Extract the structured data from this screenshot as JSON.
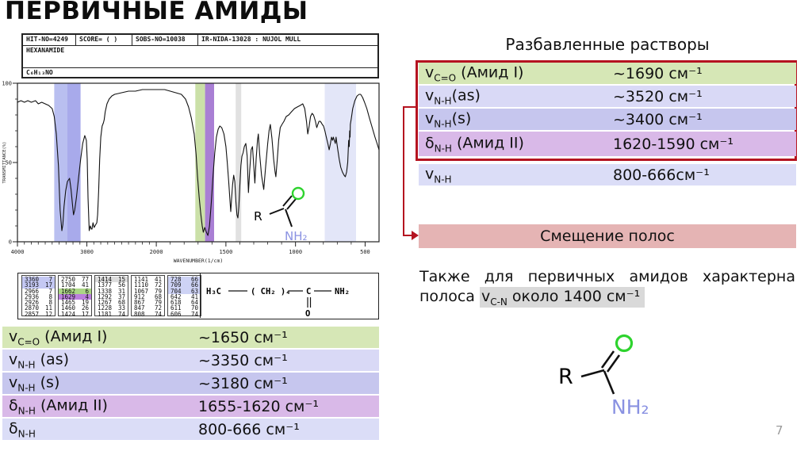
{
  "slide": {
    "title": "ПЕРВИЧНЫЕ АМИДЫ",
    "page_number": "7"
  },
  "colors": {
    "accent_red": "#b51320",
    "row_green": "#d6e7b6",
    "row_lavender_1": "#d9d9f6",
    "row_lavender_2": "#c6c6ee",
    "row_purple": "#d9b9e8",
    "row_lavender_3": "#dbddf7",
    "shift_box_bg": "#e5b4b4",
    "note_highlight_bg": "#d9d9d9",
    "structure_o_green": "#2ed32e",
    "structure_nh2_blue": "#8a92e2",
    "peak_hl": {
      "blue": "#c4c8f3",
      "green": "#abd685",
      "purple": "#bb7fdd",
      "gray": "#dcdcdc",
      "lav": "#ced3f5"
    }
  },
  "sdbs_card": {
    "header": {
      "hit_no": "HIT-NO=4249",
      "score": "SCORE=  (  )",
      "sobs_no": "SOBS-NO=10038",
      "source": "IR-NIDA-13028 : NUJOL MULL",
      "compound": "HEXANAMIDE",
      "formula": "C₆H₁₃NO"
    },
    "formula_line": {
      "h3c": "H₃C",
      "ch2": "( CH₂ )₄",
      "c": "C",
      "o": "O",
      "nh2": "NH₂"
    },
    "peak_columns": [
      [
        {
          "w": "3360",
          "i": "7",
          "hl": "blue"
        },
        {
          "w": "3193",
          "i": "17",
          "hl": "blue"
        },
        {
          "w": "2966",
          "i": "7"
        },
        {
          "w": "2936",
          "i": "8"
        },
        {
          "w": "2926",
          "i": "8"
        },
        {
          "w": "2870",
          "i": "11"
        },
        {
          "w": "2857",
          "i": "12"
        }
      ],
      [
        {
          "w": "2750",
          "i": "77"
        },
        {
          "w": "1704",
          "i": "41"
        },
        {
          "w": "1662",
          "i": "6",
          "hl": "green"
        },
        {
          "w": "1629",
          "i": "4",
          "hl": "purple"
        },
        {
          "w": "1465",
          "i": "19"
        },
        {
          "w": "1460",
          "i": "26"
        },
        {
          "w": "1424",
          "i": "17"
        }
      ],
      [
        {
          "w": "1414",
          "i": "15",
          "hl": "gray"
        },
        {
          "w": "1377",
          "i": "56"
        },
        {
          "w": "1338",
          "i": "31"
        },
        {
          "w": "1292",
          "i": "37"
        },
        {
          "w": "1267",
          "i": "68"
        },
        {
          "w": "1228",
          "i": "33"
        },
        {
          "w": "1181",
          "i": "74"
        }
      ],
      [
        {
          "w": "1141",
          "i": "41"
        },
        {
          "w": "1110",
          "i": "72"
        },
        {
          "w": "1067",
          "i": "79"
        },
        {
          "w": "912",
          "i": "68"
        },
        {
          "w": "867",
          "i": "79"
        },
        {
          "w": "847",
          "i": "72"
        },
        {
          "w": "808",
          "i": "74"
        }
      ],
      [
        {
          "w": "728",
          "i": "66",
          "hl": "lav"
        },
        {
          "w": "709",
          "i": "66",
          "hl": "lav"
        },
        {
          "w": "704",
          "i": "63",
          "hl": "lav"
        },
        {
          "w": "642",
          "i": "41"
        },
        {
          "w": "618",
          "i": "64"
        },
        {
          "w": "611",
          "i": "70"
        },
        {
          "w": "606",
          "i": "74"
        }
      ]
    ]
  },
  "chart_data": {
    "type": "line",
    "xlabel": "WAVENUMBER(1/cm)",
    "ylabel": "TRANSMITTANCE(%)",
    "x_ticks": [
      4000,
      3000,
      2000,
      1500,
      1000,
      500
    ],
    "y_ticks": [
      100,
      50,
      0
    ],
    "ylim": [
      0,
      100
    ],
    "x_axis_note": "split scale: 4000-2000 compressed, 2000-400 expanded",
    "bands": [
      {
        "from": 3470,
        "to": 3280,
        "color": "#b9bff0"
      },
      {
        "from": 3280,
        "to": 3090,
        "color": "#a8aaeb"
      },
      {
        "from": 1720,
        "to": 1650,
        "color": "#cbe0a8"
      },
      {
        "from": 1650,
        "to": 1585,
        "color": "#a97fd4"
      },
      {
        "from": 1430,
        "to": 1390,
        "color": "#e1e1e1"
      },
      {
        "from": 790,
        "to": 565,
        "color": "#e3e6f8"
      }
    ],
    "curve": [
      [
        4000,
        88
      ],
      [
        3950,
        89
      ],
      [
        3900,
        88
      ],
      [
        3850,
        89
      ],
      [
        3800,
        88
      ],
      [
        3740,
        89
      ],
      [
        3700,
        87
      ],
      [
        3650,
        88
      ],
      [
        3600,
        87
      ],
      [
        3550,
        86
      ],
      [
        3500,
        84
      ],
      [
        3470,
        79
      ],
      [
        3440,
        68
      ],
      [
        3410,
        48
      ],
      [
        3385,
        20
      ],
      [
        3360,
        7
      ],
      [
        3345,
        11
      ],
      [
        3330,
        22
      ],
      [
        3305,
        32
      ],
      [
        3280,
        38
      ],
      [
        3250,
        40
      ],
      [
        3228,
        33
      ],
      [
        3208,
        24
      ],
      [
        3193,
        17
      ],
      [
        3175,
        20
      ],
      [
        3150,
        28
      ],
      [
        3120,
        40
      ],
      [
        3090,
        52
      ],
      [
        3060,
        62
      ],
      [
        3030,
        67
      ],
      [
        3008,
        64
      ],
      [
        2995,
        52
      ],
      [
        2984,
        28
      ],
      [
        2966,
        7
      ],
      [
        2950,
        10
      ],
      [
        2936,
        8
      ],
      [
        2926,
        8
      ],
      [
        2912,
        12
      ],
      [
        2895,
        9
      ],
      [
        2870,
        11
      ],
      [
        2857,
        12
      ],
      [
        2845,
        17
      ],
      [
        2830,
        32
      ],
      [
        2815,
        52
      ],
      [
        2800,
        66
      ],
      [
        2780,
        73
      ],
      [
        2762,
        75
      ],
      [
        2750,
        77
      ],
      [
        2736,
        82
      ],
      [
        2710,
        87
      ],
      [
        2680,
        90
      ],
      [
        2640,
        92
      ],
      [
        2600,
        93
      ],
      [
        2500,
        94
      ],
      [
        2400,
        95
      ],
      [
        2300,
        95
      ],
      [
        2200,
        96
      ],
      [
        2100,
        96
      ],
      [
        2000,
        96
      ],
      [
        1940,
        96
      ],
      [
        1900,
        95
      ],
      [
        1860,
        94
      ],
      [
        1820,
        93
      ],
      [
        1790,
        90
      ],
      [
        1768,
        85
      ],
      [
        1748,
        78
      ],
      [
        1728,
        68
      ],
      [
        1714,
        55
      ],
      [
        1704,
        41
      ],
      [
        1692,
        28
      ],
      [
        1681,
        18
      ],
      [
        1670,
        10
      ],
      [
        1662,
        6
      ],
      [
        1652,
        9
      ],
      [
        1640,
        6
      ],
      [
        1629,
        4
      ],
      [
        1618,
        10
      ],
      [
        1605,
        25
      ],
      [
        1592,
        42
      ],
      [
        1580,
        56
      ],
      [
        1568,
        66
      ],
      [
        1556,
        71
      ],
      [
        1544,
        73
      ],
      [
        1530,
        72
      ],
      [
        1514,
        68
      ],
      [
        1500,
        60
      ],
      [
        1490,
        50
      ],
      [
        1480,
        38
      ],
      [
        1471,
        26
      ],
      [
        1465,
        19
      ],
      [
        1460,
        26
      ],
      [
        1452,
        36
      ],
      [
        1444,
        42
      ],
      [
        1436,
        38
      ],
      [
        1428,
        25
      ],
      [
        1421,
        17
      ],
      [
        1414,
        15
      ],
      [
        1407,
        22
      ],
      [
        1400,
        35
      ],
      [
        1392,
        48
      ],
      [
        1385,
        54
      ],
      [
        1377,
        56
      ],
      [
        1368,
        60
      ],
      [
        1357,
        62
      ],
      [
        1347,
        54
      ],
      [
        1338,
        31
      ],
      [
        1329,
        45
      ],
      [
        1319,
        58
      ],
      [
        1309,
        60
      ],
      [
        1300,
        48
      ],
      [
        1292,
        37
      ],
      [
        1283,
        52
      ],
      [
        1273,
        64
      ],
      [
        1267,
        68
      ],
      [
        1257,
        55
      ],
      [
        1244,
        42
      ],
      [
        1228,
        33
      ],
      [
        1214,
        48
      ],
      [
        1200,
        62
      ],
      [
        1190,
        70
      ],
      [
        1181,
        74
      ],
      [
        1169,
        65
      ],
      [
        1157,
        52
      ],
      [
        1147,
        44
      ],
      [
        1141,
        41
      ],
      [
        1131,
        52
      ],
      [
        1121,
        64
      ],
      [
        1110,
        72
      ],
      [
        1097,
        74
      ],
      [
        1083,
        76
      ],
      [
        1067,
        79
      ],
      [
        1049,
        80
      ],
      [
        1029,
        82
      ],
      [
        1008,
        84
      ],
      [
        988,
        85
      ],
      [
        966,
        86
      ],
      [
        948,
        87
      ],
      [
        934,
        84
      ],
      [
        921,
        76
      ],
      [
        912,
        68
      ],
      [
        902,
        73
      ],
      [
        892,
        79
      ],
      [
        881,
        81
      ],
      [
        871,
        80
      ],
      [
        867,
        79
      ],
      [
        857,
        76
      ],
      [
        850,
        73
      ],
      [
        847,
        72
      ],
      [
        840,
        74
      ],
      [
        831,
        76
      ],
      [
        822,
        76
      ],
      [
        814,
        75
      ],
      [
        808,
        74
      ],
      [
        799,
        73
      ],
      [
        789,
        70
      ],
      [
        779,
        66
      ],
      [
        768,
        62
      ],
      [
        758,
        58
      ],
      [
        749,
        62
      ],
      [
        741,
        66
      ],
      [
        734,
        64
      ],
      [
        728,
        66
      ],
      [
        721,
        64
      ],
      [
        714,
        62
      ],
      [
        709,
        66
      ],
      [
        706,
        64
      ],
      [
        704,
        63
      ],
      [
        696,
        58
      ],
      [
        686,
        52
      ],
      [
        675,
        47
      ],
      [
        663,
        44
      ],
      [
        651,
        42
      ],
      [
        642,
        41
      ],
      [
        633,
        44
      ],
      [
        625,
        50
      ],
      [
        618,
        64
      ],
      [
        614,
        60
      ],
      [
        611,
        70
      ],
      [
        608,
        66
      ],
      [
        606,
        74
      ],
      [
        599,
        78
      ],
      [
        589,
        84
      ],
      [
        574,
        89
      ],
      [
        558,
        92
      ],
      [
        543,
        93
      ],
      [
        532,
        93
      ],
      [
        518,
        91
      ],
      [
        504,
        88
      ],
      [
        488,
        84
      ],
      [
        469,
        78
      ],
      [
        449,
        72
      ],
      [
        429,
        66
      ],
      [
        414,
        62
      ],
      [
        400,
        58
      ]
    ]
  },
  "left_table": {
    "rows": [
      {
        "bg": "row_green",
        "label": [
          {
            "t": "v"
          },
          {
            "t": "C=O",
            "sub": true
          },
          {
            "t": " (Амид I)"
          }
        ],
        "value": "~1650 см⁻¹"
      },
      {
        "bg": "row_lavender_1",
        "label": [
          {
            "t": "v"
          },
          {
            "t": "N-H",
            "sub": true
          },
          {
            "t": " (as)"
          }
        ],
        "value": "~3350 см⁻¹"
      },
      {
        "bg": "row_lavender_2",
        "label": [
          {
            "t": "v"
          },
          {
            "t": "N-H",
            "sub": true
          },
          {
            "t": " (s)"
          }
        ],
        "value": "~3180 см⁻¹"
      },
      {
        "bg": "row_purple",
        "label": [
          {
            "t": "δ"
          },
          {
            "t": "N-H",
            "sub": true
          },
          {
            "t": " (Амид II)"
          }
        ],
        "value": "1655-1620 см⁻¹"
      },
      {
        "bg": "row_lavender_3",
        "label": [
          {
            "t": "δ"
          },
          {
            "t": "N-H",
            "sub": true
          }
        ],
        "value": "800-666 см⁻¹"
      }
    ]
  },
  "right_panel": {
    "heading": "Разбавленные растворы",
    "table_rows": [
      {
        "bg": "row_green",
        "label": [
          {
            "t": "v"
          },
          {
            "t": "C=O",
            "sub": true
          },
          {
            "t": " (Амид I)"
          }
        ],
        "value": "~1690 см⁻¹"
      },
      {
        "bg": "row_lavender_1",
        "label": [
          {
            "t": "v"
          },
          {
            "t": "N-H",
            "sub": true
          },
          {
            "t": "(as)"
          }
        ],
        "value": "~3520 см⁻¹"
      },
      {
        "bg": "row_lavender_2",
        "label": [
          {
            "t": "v"
          },
          {
            "t": "N-H",
            "sub": true
          },
          {
            "t": "(s)"
          }
        ],
        "value": "~3400 см⁻¹"
      },
      {
        "bg": "row_purple",
        "label": [
          {
            "t": "δ"
          },
          {
            "t": "N-H",
            "sub": true
          },
          {
            "t": "  (Амид II)"
          }
        ],
        "value": "1620-1590 см⁻¹"
      },
      {
        "bg": "row_lavender_3",
        "label": [
          {
            "t": "v"
          },
          {
            "t": "N-H",
            "sub": true
          }
        ],
        "value": "800-666см⁻¹"
      }
    ],
    "shift_box_label": "Смещение полос",
    "note_line1_words": [
      "Также",
      "для",
      "первичных",
      "амидов",
      "характерна"
    ],
    "note_line2_prefix": "полоса ",
    "note_highlight": [
      {
        "t": "v"
      },
      {
        "t": "C-N",
        "sub": true
      },
      {
        "t": " около 1400 см⁻¹"
      }
    ]
  },
  "structure": {
    "r": "R",
    "o": "O",
    "nh2": "NH₂"
  }
}
